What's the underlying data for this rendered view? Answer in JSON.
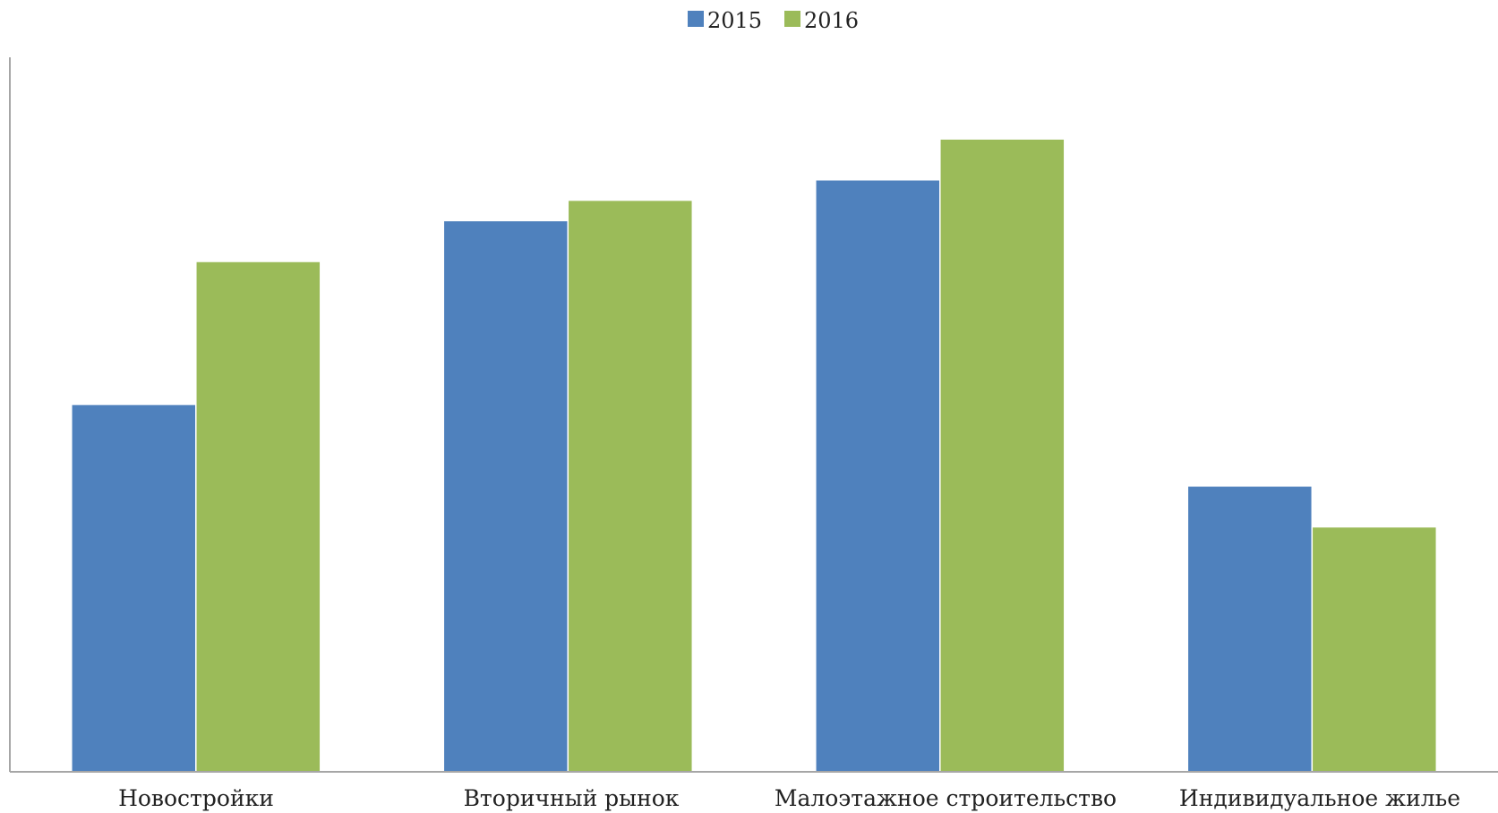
{
  "chart_data": {
    "type": "bar",
    "categories": [
      "Новостройки",
      "Вторичный рынок",
      "Малоэтажное строительство",
      "Индивидуальное жилье"
    ],
    "series": [
      {
        "name": "2015",
        "color": "#4F81BD",
        "values": [
          45,
          67.5,
          72.5,
          35
        ]
      },
      {
        "name": "2016",
        "color": "#9BBB59",
        "values": [
          62.5,
          70,
          77.5,
          30
        ]
      }
    ],
    "ylim": [
      0,
      87.5
    ],
    "grid": false,
    "legend": "top-center",
    "title": "",
    "xlabel": "",
    "ylabel": ""
  }
}
